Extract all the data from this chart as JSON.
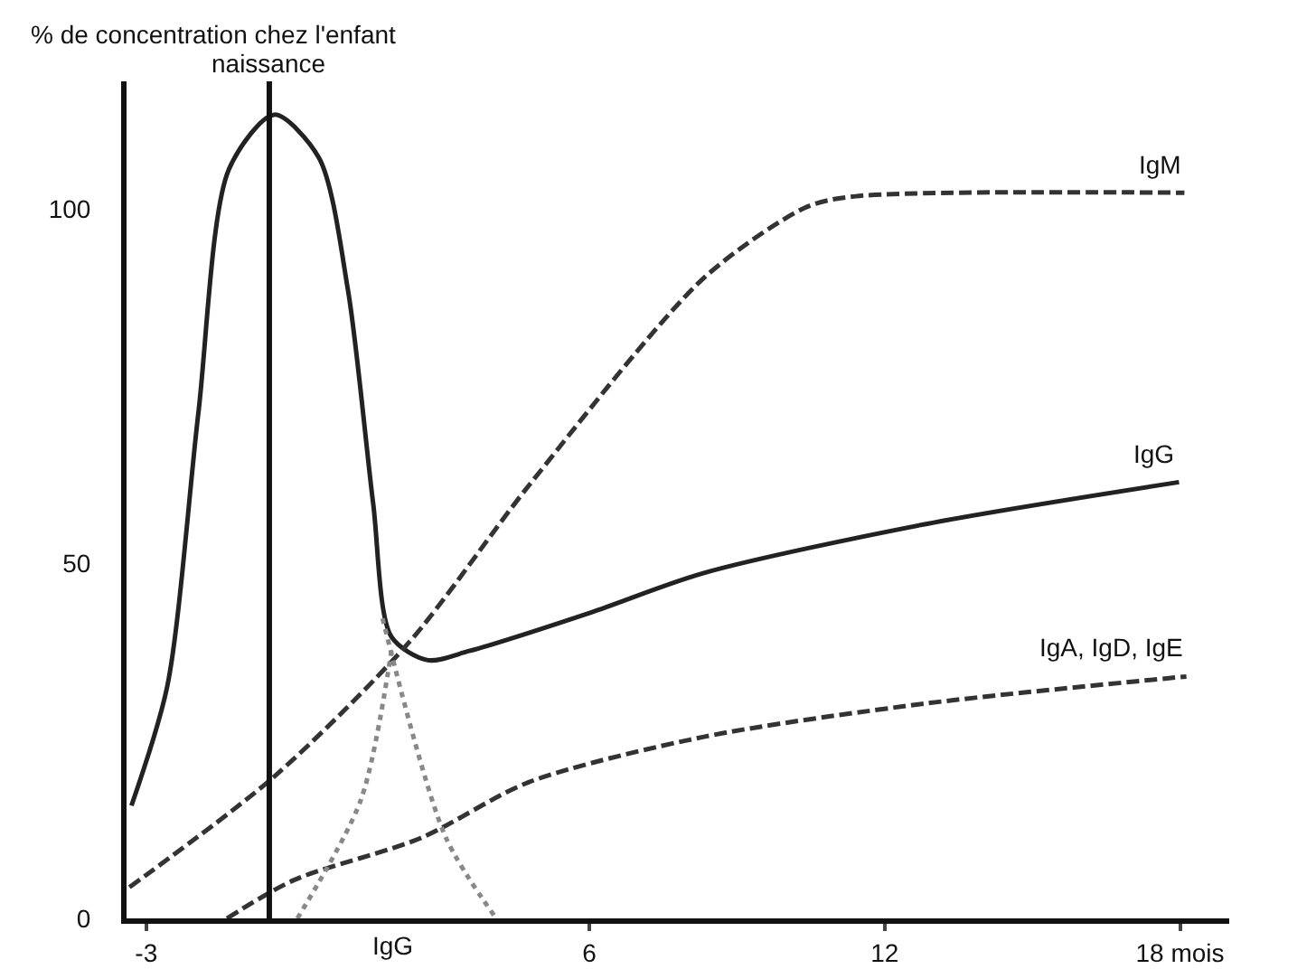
{
  "chart_data": {
    "type": "line",
    "ylabel": "% de concentration chez l'enfant",
    "xlim": [
      -3.4,
      19
    ],
    "ylim": [
      0,
      118
    ],
    "xticks": [
      -3,
      6,
      12,
      {
        "value": 18,
        "label": "18 mois"
      }
    ],
    "yticks": [
      0,
      50,
      100
    ],
    "grid": false,
    "legend": false,
    "marker": "none",
    "series": [
      {
        "name": "IgG",
        "color": "#222222",
        "line_style": "solid",
        "x": [
          -3.3,
          -2.57,
          -1.94,
          -1.32,
          -0.4,
          0.51,
          1.1,
          1.61,
          1.98,
          2.72,
          3.56,
          6.02,
          8.33,
          12.84,
          17.98
        ],
        "values": [
          15.9,
          32.8,
          71.3,
          105.6,
          113.3,
          107.2,
          88.5,
          58.5,
          39.7,
          36.4,
          37.7,
          43.1,
          48.7,
          55.6,
          61.5
        ]
      },
      {
        "name": "IgM",
        "color": "#333333",
        "line_style": "dashed",
        "x": [
          -3.34,
          -0.4,
          2.35,
          4.77,
          8.33,
          10.42,
          11.41,
          18.09
        ],
        "values": [
          4.4,
          20,
          39,
          61,
          90.3,
          100.3,
          101.8,
          102.3
        ]
      },
      {
        "name": "IgA, IgD, IgE",
        "color": "#333333",
        "line_style": "dashed",
        "x": [
          -1.36,
          0,
          2.57,
          4.77,
          8.33,
          12.84,
          18.13
        ],
        "values": [
          0,
          5.4,
          11.3,
          19.2,
          25.6,
          30.3,
          34.1
        ]
      },
      {
        "color": "#888888",
        "line_style": "dotted",
        "x": [
          0.07,
          1.36,
          1.98
        ],
        "values": [
          0,
          16.7,
          37.7
        ]
      },
      {
        "color": "#888888",
        "line_style": "dotted",
        "x": [
          1.8,
          3.08,
          4.11
        ],
        "values": [
          42.3,
          11.5,
          0
        ]
      }
    ],
    "ref_lines": [
      {
        "axis": "x",
        "value": -0.5,
        "label": "naissance",
        "color": "#111111"
      }
    ],
    "annotations": [
      "IgG"
    ]
  }
}
